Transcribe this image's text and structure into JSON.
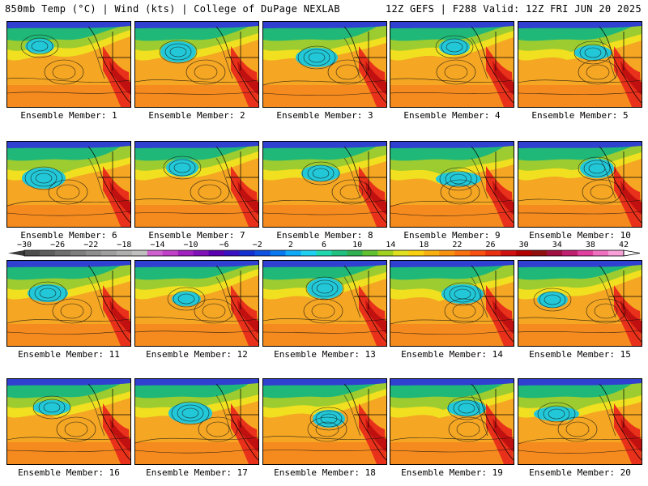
{
  "header": {
    "left": "850mb Temp (°C) | Wind (kts) | College of DuPage NEXLAB",
    "right": "12Z GEFS | F288 Valid: 12Z FRI JUN 20 2025"
  },
  "colorbar": {
    "labels": [
      "−30",
      "−26",
      "−22",
      "−18",
      "−14",
      "−10",
      "−6",
      "−2",
      "2",
      "6",
      "10",
      "14",
      "18",
      "22",
      "26",
      "30",
      "34",
      "38",
      "42"
    ],
    "min": -30,
    "max": 42,
    "step": 2,
    "colors": [
      "#4e4e4e",
      "#5e5e5e",
      "#6e6e6e",
      "#7e7e7e",
      "#8e8e8e",
      "#9e9e9e",
      "#aeaeae",
      "#bfbfbf",
      "#d060d0",
      "#c040c8",
      "#a020c0",
      "#8010b8",
      "#5b00b0",
      "#3a10c0",
      "#1530d0",
      "#1050e0",
      "#0878f0",
      "#10a8f8",
      "#20d0f0",
      "#20d8b0",
      "#20c080",
      "#30b050",
      "#60c030",
      "#a0d020",
      "#e0e020",
      "#f8d010",
      "#f8b010",
      "#f89010",
      "#f87010",
      "#f85010",
      "#e83010",
      "#d01010",
      "#b00000",
      "#901010",
      "#a01040",
      "#c02070",
      "#e040a0",
      "#f070c0",
      "#f8a0d8"
    ]
  },
  "members": [
    {
      "label": "Ensemble Member: 1"
    },
    {
      "label": "Ensemble Member: 2"
    },
    {
      "label": "Ensemble Member: 3"
    },
    {
      "label": "Ensemble Member: 4"
    },
    {
      "label": "Ensemble Member: 5"
    },
    {
      "label": "Ensemble Member: 6"
    },
    {
      "label": "Ensemble Member: 7"
    },
    {
      "label": "Ensemble Member: 8"
    },
    {
      "label": "Ensemble Member: 9"
    },
    {
      "label": "Ensemble Member: 10"
    },
    {
      "label": "Ensemble Member: 11"
    },
    {
      "label": "Ensemble Member: 12"
    },
    {
      "label": "Ensemble Member: 13"
    },
    {
      "label": "Ensemble Member: 14"
    },
    {
      "label": "Ensemble Member: 15"
    },
    {
      "label": "Ensemble Member: 16"
    },
    {
      "label": "Ensemble Member: 17"
    },
    {
      "label": "Ensemble Member: 18"
    },
    {
      "label": "Ensemble Member: 19"
    },
    {
      "label": "Ensemble Member: 20"
    }
  ]
}
